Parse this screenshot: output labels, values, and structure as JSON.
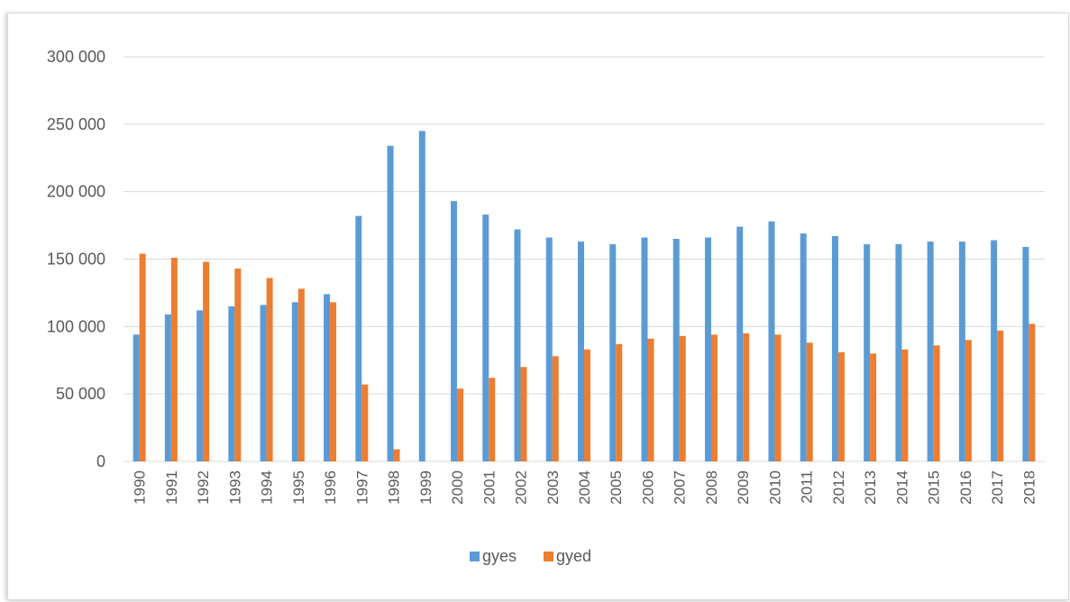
{
  "chart_data": {
    "type": "bar",
    "title": "",
    "xlabel": "",
    "ylabel": "",
    "ylim": [
      0,
      300000
    ],
    "yticks": [
      0,
      50000,
      100000,
      150000,
      200000,
      250000,
      300000
    ],
    "ytick_labels": [
      "0",
      "50 000",
      "100 000",
      "150 000",
      "200 000",
      "250 000",
      "300 000"
    ],
    "grid": true,
    "legend_position": "bottom",
    "categories": [
      "1990",
      "1991",
      "1992",
      "1993",
      "1994",
      "1995",
      "1996",
      "1997",
      "1998",
      "1999",
      "2000",
      "2001",
      "2002",
      "2003",
      "2004",
      "2005",
      "2006",
      "2007",
      "2008",
      "2009",
      "2010",
      "2011",
      "2012",
      "2013",
      "2014",
      "2015",
      "2016",
      "2017",
      "2018"
    ],
    "series": [
      {
        "name": "gyes",
        "color": "#5B9BD5",
        "values": [
          94000,
          109000,
          112000,
          115000,
          116000,
          118000,
          124000,
          182000,
          234000,
          245000,
          193000,
          183000,
          172000,
          166000,
          163000,
          161000,
          166000,
          165000,
          166000,
          174000,
          178000,
          169000,
          167000,
          161000,
          161000,
          163000,
          163000,
          164000,
          159000
        ]
      },
      {
        "name": "gyed",
        "color": "#ED7D31",
        "values": [
          154000,
          151000,
          148000,
          143000,
          136000,
          128000,
          118000,
          57000,
          9000,
          0,
          54000,
          62000,
          70000,
          78000,
          83000,
          87000,
          91000,
          93000,
          94000,
          95000,
          94000,
          88000,
          81000,
          80000,
          83000,
          86000,
          90000,
          97000,
          102000
        ]
      }
    ]
  }
}
